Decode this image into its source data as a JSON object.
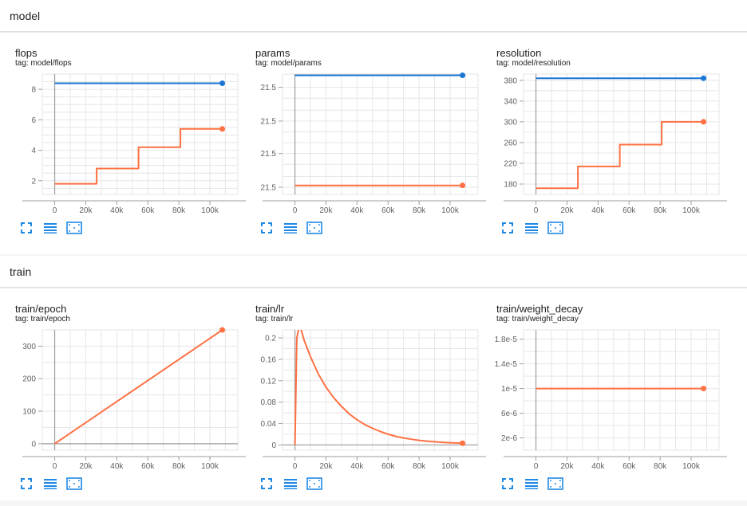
{
  "sections": [
    {
      "title": "model"
    },
    {
      "title": "train"
    }
  ],
  "colors": {
    "blue": "#1976d2",
    "orange": "#ff7043",
    "toolbar_icon": "#1e88e5"
  },
  "toolbar_icons": [
    "expand-icon",
    "lines-icon",
    "fit-domain-icon"
  ],
  "chart_data": [
    {
      "type": "line",
      "title": "flops",
      "tag": "tag: model/flops",
      "xlim": [
        -8000,
        118000
      ],
      "ylim": [
        1.1,
        9.0
      ],
      "xticks": [
        0,
        20000,
        40000,
        60000,
        80000,
        100000
      ],
      "xtick_labels": [
        "0",
        "20k",
        "40k",
        "60k",
        "80k",
        "100k"
      ],
      "yticks": [
        2,
        4,
        6,
        8
      ],
      "ytick_labels": [
        "2",
        "4",
        "6",
        "8"
      ],
      "ygrid": [
        1.5,
        2,
        2.5,
        3,
        3.5,
        4,
        4.5,
        5,
        5.5,
        6,
        6.5,
        7,
        7.5,
        8,
        8.5
      ],
      "grid": true,
      "series": [
        {
          "color": "#1976d2",
          "x": [
            0,
            108000
          ],
          "y": [
            8.4,
            8.4
          ],
          "end_dot": true
        },
        {
          "color": "#ff7043",
          "x": [
            0,
            27000,
            27000,
            54000,
            54000,
            81000,
            81000,
            108000
          ],
          "y": [
            1.8,
            1.8,
            2.8,
            2.8,
            4.2,
            4.2,
            5.4,
            5.4
          ],
          "end_dot": true
        }
      ]
    },
    {
      "type": "line",
      "title": "params",
      "tag": "tag: model/params",
      "xlim": [
        -8000,
        118000
      ],
      "ylim": [
        0,
        10
      ],
      "xticks": [
        0,
        20000,
        40000,
        60000,
        80000,
        100000
      ],
      "xtick_labels": [
        "0",
        "20k",
        "40k",
        "60k",
        "80k",
        "100k"
      ],
      "yticks": [
        0.6,
        3.4,
        6.1,
        8.9
      ],
      "ytick_labels": [
        "21.5",
        "21.5",
        "21.5",
        "21.5"
      ],
      "ygrid": [
        0.6,
        1.5,
        2.5,
        3.4,
        4.3,
        5.2,
        6.1,
        7.0,
        8.0,
        8.9
      ],
      "grid": true,
      "series": [
        {
          "color": "#1976d2",
          "x": [
            0,
            108000
          ],
          "y": [
            9.9,
            9.9
          ],
          "end_dot": true
        },
        {
          "color": "#ff7043",
          "x": [
            0,
            108000
          ],
          "y": [
            0.75,
            0.75
          ],
          "end_dot": true
        }
      ]
    },
    {
      "type": "line",
      "title": "resolution",
      "tag": "tag: model/resolution",
      "xlim": [
        -8000,
        118000
      ],
      "ylim": [
        160,
        392
      ],
      "xticks": [
        0,
        20000,
        40000,
        60000,
        80000,
        100000
      ],
      "xtick_labels": [
        "0",
        "20k",
        "40k",
        "60k",
        "80k",
        "100k"
      ],
      "yticks": [
        180,
        220,
        260,
        300,
        340,
        380
      ],
      "ytick_labels": [
        "180",
        "220",
        "260",
        "300",
        "340",
        "380"
      ],
      "ygrid": [
        180,
        200,
        220,
        240,
        260,
        280,
        300,
        320,
        340,
        360,
        380
      ],
      "grid": true,
      "series": [
        {
          "color": "#1976d2",
          "x": [
            0,
            108000
          ],
          "y": [
            384,
            384
          ],
          "end_dot": true
        },
        {
          "color": "#ff7043",
          "x": [
            0,
            27000,
            27000,
            54000,
            54000,
            81000,
            81000,
            108000
          ],
          "y": [
            172,
            172,
            214,
            214,
            256,
            256,
            300,
            300
          ],
          "end_dot": true
        }
      ]
    },
    {
      "type": "line",
      "title": "train/epoch",
      "tag": "tag: train/epoch",
      "xlim": [
        -8000,
        118000
      ],
      "ylim": [
        -20,
        350
      ],
      "xticks": [
        0,
        20000,
        40000,
        60000,
        80000,
        100000
      ],
      "xtick_labels": [
        "0",
        "20k",
        "40k",
        "60k",
        "80k",
        "100k"
      ],
      "yticks": [
        0,
        100,
        200,
        300
      ],
      "ytick_labels": [
        "0",
        "100",
        "200",
        "300"
      ],
      "ygrid": [
        0,
        50,
        100,
        150,
        200,
        250,
        300
      ],
      "grid": true,
      "series": [
        {
          "color": "#ff7043",
          "x": [
            0,
            108000
          ],
          "y": [
            0,
            350
          ],
          "end_dot": true
        }
      ]
    },
    {
      "type": "line",
      "title": "train/lr",
      "tag": "tag: train/lr",
      "xlim": [
        -8000,
        118000
      ],
      "ylim": [
        -0.01,
        0.215
      ],
      "xticks": [
        0,
        20000,
        40000,
        60000,
        80000,
        100000
      ],
      "xtick_labels": [
        "0",
        "20k",
        "40k",
        "60k",
        "80k",
        "100k"
      ],
      "yticks": [
        0,
        0.04,
        0.08,
        0.12,
        0.16,
        0.2
      ],
      "ytick_labels": [
        "0",
        "0.04",
        "0.08",
        "0.12",
        "0.16",
        "0.2"
      ],
      "ygrid": [
        0,
        0.02,
        0.04,
        0.06,
        0.08,
        0.1,
        0.12,
        0.14,
        0.16,
        0.18,
        0.2
      ],
      "grid": true,
      "series": [
        {
          "color": "#ff7043",
          "x": [
            0,
            1200,
            3000,
            6000,
            10000,
            15000,
            20000,
            25000,
            30000,
            35000,
            40000,
            45000,
            50000,
            55000,
            60000,
            65000,
            70000,
            75000,
            80000,
            85000,
            90000,
            95000,
            100000,
            104000,
            108000
          ],
          "y": [
            0,
            0.2,
            0.225,
            0.195,
            0.165,
            0.133,
            0.108,
            0.088,
            0.072,
            0.058,
            0.047,
            0.038,
            0.031,
            0.025,
            0.02,
            0.016,
            0.013,
            0.0105,
            0.0085,
            0.007,
            0.0058,
            0.0048,
            0.004,
            0.0035,
            0.003
          ],
          "end_dot": true
        }
      ]
    },
    {
      "type": "line",
      "title": "train/weight_decay",
      "tag": "tag: train/weight_decay",
      "xlim": [
        -8000,
        118000
      ],
      "ylim": [
        0,
        1.95e-05
      ],
      "xticks": [
        0,
        20000,
        40000,
        60000,
        80000,
        100000
      ],
      "xtick_labels": [
        "0",
        "20k",
        "40k",
        "60k",
        "80k",
        "100k"
      ],
      "yticks": [
        2e-06,
        6e-06,
        1e-05,
        1.4e-05,
        1.8e-05
      ],
      "ytick_labels": [
        "2e-6",
        "6e-6",
        "1e-5",
        "1.4e-5",
        "1.8e-5"
      ],
      "ygrid": [
        2e-06,
        4e-06,
        6e-06,
        8e-06,
        1e-05,
        1.2e-05,
        1.4e-05,
        1.6e-05,
        1.8e-05
      ],
      "grid": true,
      "series": [
        {
          "color": "#ff7043",
          "x": [
            0,
            108000
          ],
          "y": [
            1e-05,
            1e-05
          ],
          "end_dot": true
        }
      ]
    }
  ]
}
